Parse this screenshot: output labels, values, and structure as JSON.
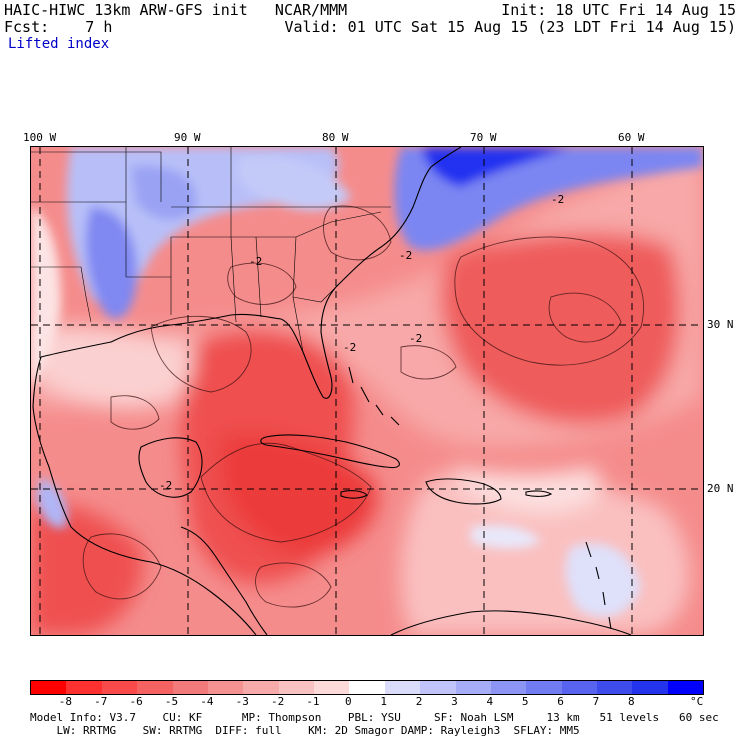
{
  "header": {
    "left_line1": "HAIC-HIWC 13km ARW-GFS init   NCAR/MMM",
    "left_line2": "Fcst:    7 h",
    "right_line1": "Init: 18 UTC Fri 14 Aug 15",
    "right_line2": "Valid: 01 UTC Sat 15 Aug 15 (23 LDT Fri 14 Aug 15)",
    "field_name": "Lifted index"
  },
  "map": {
    "lon_labels": [
      "100 W",
      "90 W",
      "80 W",
      "70 W",
      "60 W"
    ],
    "lat_labels": [
      "30 N",
      "20 N"
    ],
    "contour_labels": [
      "-2",
      "-2",
      "-2",
      "-2",
      "-2",
      "-2"
    ],
    "colors": {
      "deep_red": "#ff1a1a",
      "red": "#f04848",
      "pink": "#f58c8c",
      "light_pink": "#fcc8c8",
      "light_blue": "#c8d0ff",
      "blue": "#6c78f0",
      "deep_blue": "#1010f0"
    }
  },
  "colorbar": {
    "tick_labels": [
      "-8",
      "-7",
      "-6",
      "-5",
      "-4",
      "-3",
      "-2",
      "-1",
      "0",
      "1",
      "2",
      "3",
      "4",
      "5",
      "6",
      "7",
      "8"
    ],
    "unit": "°C",
    "swatch_colors": [
      "#ff0000",
      "#ff3030",
      "#f84a4a",
      "#f46262",
      "#f27a7a",
      "#f49292",
      "#f6aaaa",
      "#f8c2c2",
      "#fcdada",
      "#ffffff",
      "#dadcfa",
      "#c0c4fa",
      "#a6acf6",
      "#8c94f4",
      "#727cf2",
      "#5864f0",
      "#3e4cee",
      "#2434ec",
      "#0000ff"
    ]
  },
  "footer": {
    "line1": "Model Info: V3.7    CU: KF      MP: Thompson    PBL: YSU     SF: Noah LSM     13 km   51 levels   60 sec",
    "line2": "    LW: RRTMG    SW: RRTMG  DIFF: full    KM: 2D Smagor DAMP: Rayleigh3  SFLAY: MM5"
  }
}
